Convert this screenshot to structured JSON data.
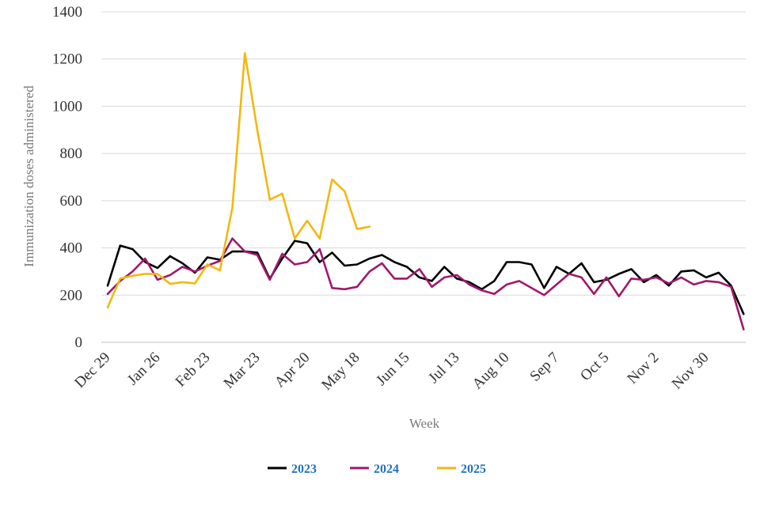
{
  "chart_data": {
    "type": "line",
    "title": "",
    "xlabel": "Week",
    "ylabel": "Immunization doses administered",
    "ylim": [
      0,
      1400
    ],
    "yticks": [
      0,
      200,
      400,
      600,
      800,
      1000,
      1200,
      1400
    ],
    "grid": "horizontal",
    "legend_position": "bottom",
    "x_tick_labels": [
      "Dec 29",
      "Jan 26",
      "Feb 23",
      "Mar 23",
      "Apr 20",
      "May 18",
      "Jun 15",
      "Jul 13",
      "Aug 10",
      "Sep 7",
      "Oct 5",
      "Nov 2",
      "Nov 30"
    ],
    "x_tick_every": 4,
    "series": [
      {
        "name": "2023",
        "color": "#000000",
        "values": [
          240,
          410,
          395,
          340,
          315,
          365,
          335,
          295,
          360,
          350,
          385,
          385,
          380,
          270,
          355,
          430,
          420,
          340,
          380,
          325,
          330,
          355,
          370,
          340,
          320,
          275,
          260,
          320,
          270,
          255,
          225,
          260,
          340,
          340,
          330,
          230,
          320,
          290,
          335,
          255,
          265,
          290,
          310,
          255,
          285,
          240,
          300,
          305,
          275,
          295,
          240,
          120
        ]
      },
      {
        "name": "2024",
        "color": "#a0186e",
        "values": [
          205,
          260,
          300,
          355,
          265,
          285,
          320,
          300,
          325,
          345,
          440,
          385,
          370,
          265,
          375,
          330,
          340,
          395,
          230,
          225,
          235,
          300,
          335,
          270,
          270,
          310,
          235,
          275,
          285,
          245,
          220,
          205,
          245,
          260,
          230,
          200,
          245,
          290,
          275,
          205,
          275,
          195,
          270,
          265,
          275,
          250,
          275,
          245,
          260,
          255,
          235,
          55
        ]
      },
      {
        "name": "2025",
        "color": "#f1b811",
        "values": [
          148,
          270,
          282,
          290,
          290,
          248,
          255,
          250,
          330,
          305,
          570,
          1225,
          900,
          605,
          630,
          440,
          515,
          440,
          690,
          640,
          480,
          490
        ]
      }
    ]
  }
}
